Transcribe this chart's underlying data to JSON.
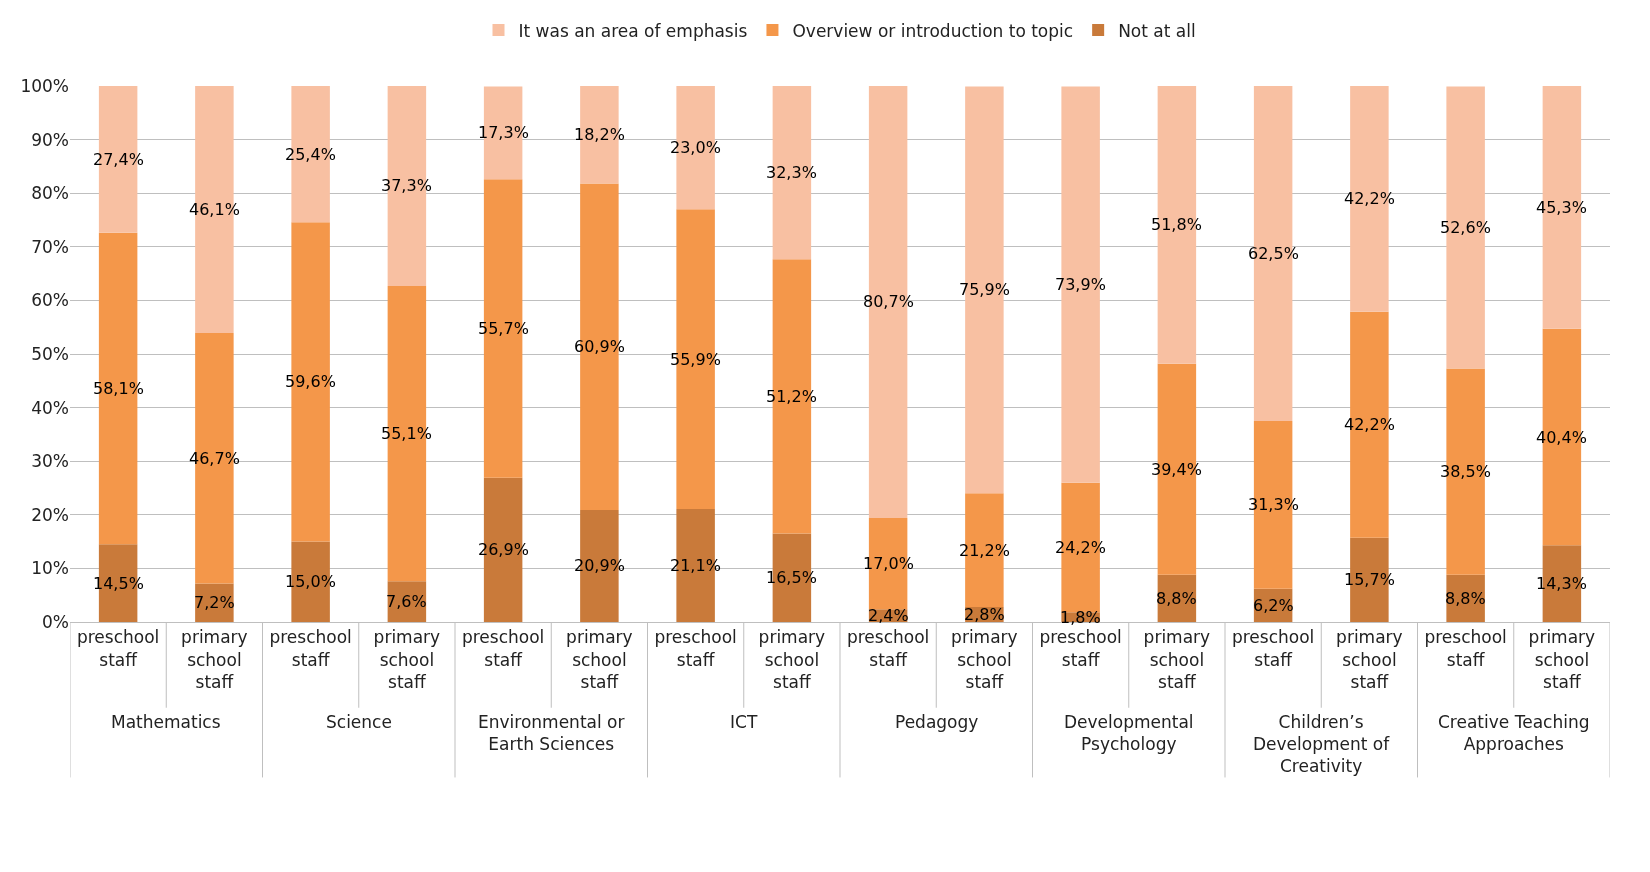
{
  "chart_data": {
    "type": "bar",
    "stacked": true,
    "categories": [
      "preschool staff",
      "primary school staff",
      "preschool staff",
      "primary school staff",
      "preschool staff",
      "primary school staff",
      "preschool staff",
      "primary school staff",
      "preschool staff",
      "primary school staff",
      "preschool staff",
      "primary school staff",
      "preschool staff",
      "primary school staff",
      "preschool staff",
      "primary school staff"
    ],
    "annotations": [
      "Mathematics",
      "Science",
      "Environmental or Earth Sciences",
      "ICT",
      "Pedagogy",
      "Developmental Psychology",
      "Children’s Development of Creativity",
      "Creative Teaching Approaches"
    ],
    "series": [
      {
        "name": "Not at all",
        "color": "#c97a3a",
        "values": [
          14.5,
          7.2,
          15.0,
          7.6,
          26.9,
          20.9,
          21.1,
          16.5,
          2.4,
          2.8,
          1.8,
          8.8,
          6.2,
          15.7,
          8.8,
          14.3
        ],
        "value_labels": [
          "14,5%",
          "7,2%",
          "15,0%",
          "7,6%",
          "26,9%",
          "20,9%",
          "21,1%",
          "16,5%",
          "2,4%",
          "2,8%",
          "1,8%",
          "8,8%",
          "6,2%",
          "15,7%",
          "8,8%",
          "14,3%"
        ]
      },
      {
        "name": "Overview or introduction to topic",
        "color": "#f4974a",
        "values": [
          58.1,
          46.7,
          59.6,
          55.1,
          55.7,
          60.9,
          55.9,
          51.2,
          17.0,
          21.2,
          24.2,
          39.4,
          31.3,
          42.2,
          38.5,
          40.4
        ],
        "value_labels": [
          "58,1%",
          "46,7%",
          "59,6%",
          "55,1%",
          "55,7%",
          "60,9%",
          "55,9%",
          "51,2%",
          "17,0%",
          "21,2%",
          "24,2%",
          "39,4%",
          "31,3%",
          "42,2%",
          "38,5%",
          "40,4%"
        ]
      },
      {
        "name": "It was an area of emphasis",
        "color": "#f8c0a2",
        "values": [
          27.4,
          46.1,
          25.4,
          37.3,
          17.3,
          18.2,
          23.0,
          32.3,
          80.7,
          75.9,
          73.9,
          51.8,
          62.5,
          42.2,
          52.6,
          45.3
        ],
        "value_labels": [
          "27,4%",
          "46,1%",
          "25,4%",
          "37,3%",
          "17,3%",
          "18,2%",
          "23,0%",
          "32,3%",
          "80,7%",
          "75,9%",
          "73,9%",
          "51,8%",
          "62,5%",
          "42,2%",
          "52,6%",
          "45,3%"
        ]
      }
    ],
    "ylim": [
      0,
      100
    ],
    "yticks": [
      {
        "value": 0,
        "label": "0%"
      },
      {
        "value": 10,
        "label": "10%"
      },
      {
        "value": 20,
        "label": "20%"
      },
      {
        "value": 30,
        "label": "30%"
      },
      {
        "value": 40,
        "label": "40%"
      },
      {
        "value": 50,
        "label": "50%"
      },
      {
        "value": 60,
        "label": "60%"
      },
      {
        "value": 70,
        "label": "70%"
      },
      {
        "value": 80,
        "label": "80%"
      },
      {
        "value": 90,
        "label": "90%"
      },
      {
        "value": 100,
        "label": "100%"
      }
    ],
    "grid": "y",
    "legend": "top"
  }
}
